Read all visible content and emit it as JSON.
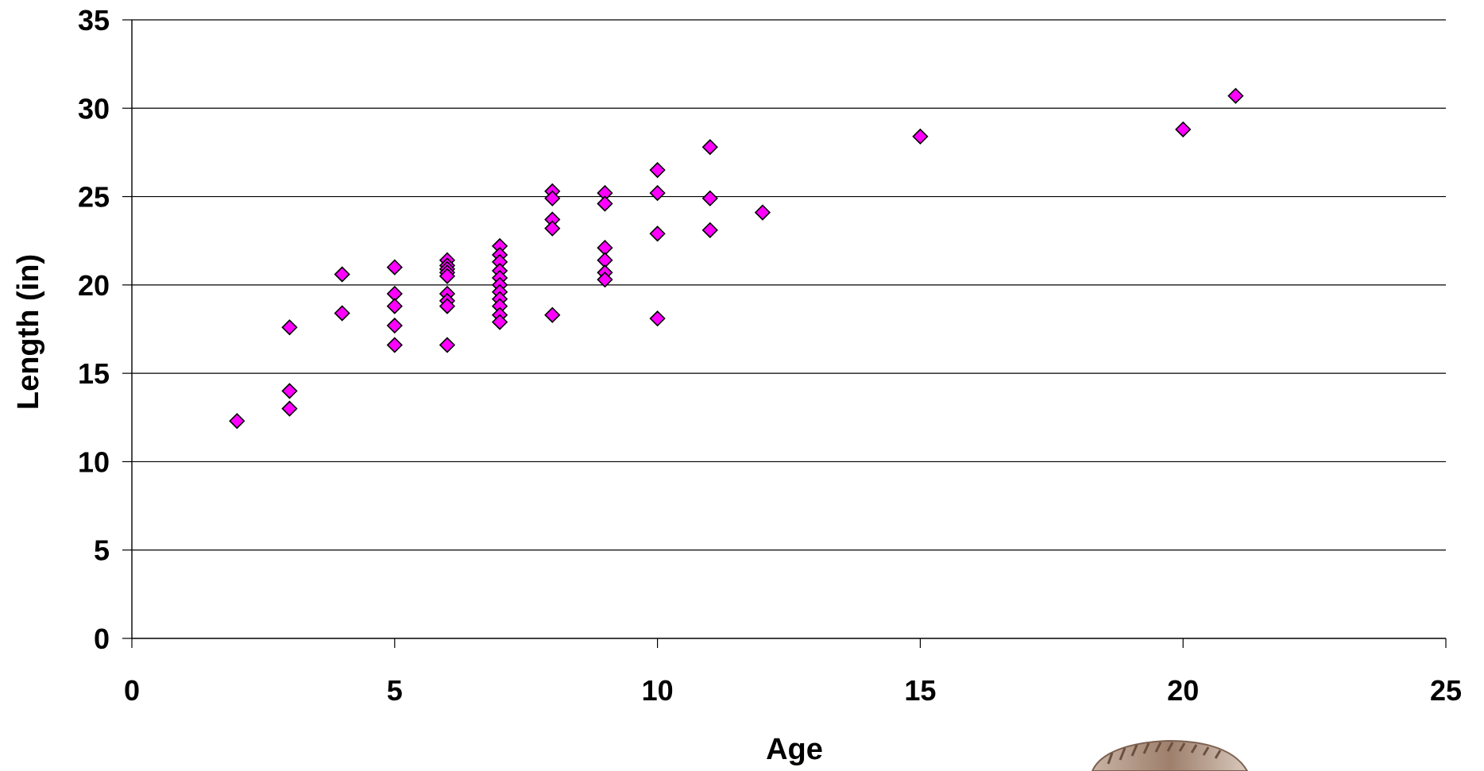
{
  "chart_data": {
    "type": "scatter",
    "title": "",
    "xlabel": "Age",
    "ylabel": "Length (in)",
    "xlim": [
      0,
      25
    ],
    "ylim": [
      0,
      35
    ],
    "x_ticks": [
      "0",
      "5",
      "10",
      "15",
      "20",
      "25"
    ],
    "y_ticks": [
      "0",
      "5",
      "10",
      "15",
      "20",
      "25",
      "30",
      "35"
    ],
    "grid": "horizontal",
    "marker": "diamond",
    "marker_color": "#ff00ff",
    "series": [
      {
        "points": [
          {
            "x": 2,
            "y": 12.3
          },
          {
            "x": 3,
            "y": 17.6
          },
          {
            "x": 3,
            "y": 14.0
          },
          {
            "x": 3,
            "y": 13.0
          },
          {
            "x": 4,
            "y": 20.6
          },
          {
            "x": 4,
            "y": 18.4
          },
          {
            "x": 5,
            "y": 21.0
          },
          {
            "x": 5,
            "y": 19.5
          },
          {
            "x": 5,
            "y": 18.8
          },
          {
            "x": 5,
            "y": 17.7
          },
          {
            "x": 5,
            "y": 16.6
          },
          {
            "x": 6,
            "y": 21.4
          },
          {
            "x": 6,
            "y": 21.1
          },
          {
            "x": 6,
            "y": 20.9
          },
          {
            "x": 6,
            "y": 20.7
          },
          {
            "x": 6,
            "y": 20.5
          },
          {
            "x": 6,
            "y": 19.5
          },
          {
            "x": 6,
            "y": 19.1
          },
          {
            "x": 6,
            "y": 18.8
          },
          {
            "x": 6,
            "y": 16.6
          },
          {
            "x": 7,
            "y": 22.2
          },
          {
            "x": 7,
            "y": 21.7
          },
          {
            "x": 7,
            "y": 21.3
          },
          {
            "x": 7,
            "y": 20.8
          },
          {
            "x": 7,
            "y": 20.4
          },
          {
            "x": 7,
            "y": 20.0
          },
          {
            "x": 7,
            "y": 19.6
          },
          {
            "x": 7,
            "y": 19.2
          },
          {
            "x": 7,
            "y": 18.8
          },
          {
            "x": 7,
            "y": 18.3
          },
          {
            "x": 7,
            "y": 17.9
          },
          {
            "x": 8,
            "y": 25.3
          },
          {
            "x": 8,
            "y": 24.9
          },
          {
            "x": 8,
            "y": 23.7
          },
          {
            "x": 8,
            "y": 23.2
          },
          {
            "x": 8,
            "y": 18.3
          },
          {
            "x": 9,
            "y": 25.2
          },
          {
            "x": 9,
            "y": 24.6
          },
          {
            "x": 9,
            "y": 22.1
          },
          {
            "x": 9,
            "y": 21.4
          },
          {
            "x": 9,
            "y": 20.7
          },
          {
            "x": 9,
            "y": 20.3
          },
          {
            "x": 10,
            "y": 26.5
          },
          {
            "x": 10,
            "y": 25.2
          },
          {
            "x": 10,
            "y": 22.9
          },
          {
            "x": 10,
            "y": 18.1
          },
          {
            "x": 11,
            "y": 27.8
          },
          {
            "x": 11,
            "y": 24.9
          },
          {
            "x": 11,
            "y": 23.1
          },
          {
            "x": 12,
            "y": 24.1
          },
          {
            "x": 15,
            "y": 28.4
          },
          {
            "x": 20,
            "y": 28.8
          },
          {
            "x": 21,
            "y": 30.7
          }
        ]
      }
    ]
  },
  "photo": {
    "description_icon": "fish-photo-partial"
  }
}
